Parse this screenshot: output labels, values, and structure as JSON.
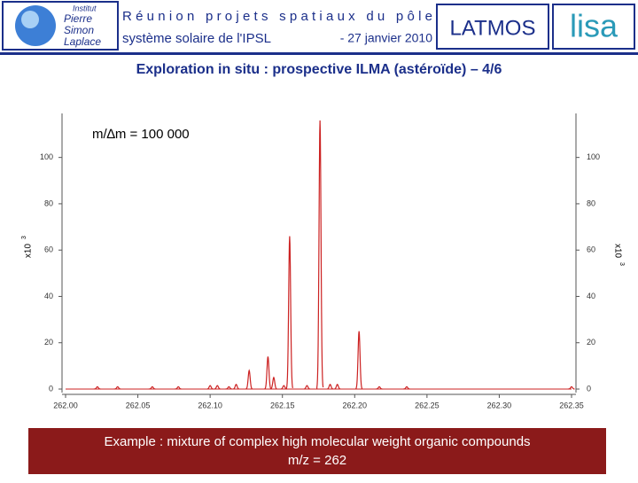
{
  "header": {
    "title_line1": "Réunion projets spatiaux du pôle",
    "title_line2": "système solaire de l'IPSL",
    "date": "- 27 janvier 2010",
    "logo_ipsl": [
      "Institut",
      "Pierre",
      "Simon",
      "Laplace"
    ],
    "logo_latmos": "LATMOS",
    "logo_lisa": "lisa"
  },
  "slide_title": "Exploration in situ : prospective ILMA (astéroïde) – 4/6",
  "chart_data": {
    "type": "spectrum",
    "annotation": "m/∆m = 100 000",
    "y_label": "x10",
    "y_label_exponent": "3",
    "color": "#cc2222",
    "x": [
      262.022,
      262.036,
      262.06,
      262.078,
      262.1,
      262.105,
      262.113,
      262.118,
      262.127,
      262.14,
      262.144,
      262.151,
      262.155,
      262.167,
      262.176,
      262.183,
      262.188,
      262.203,
      262.217,
      262.236,
      262.35
    ],
    "values": [
      1,
      1,
      1,
      1,
      1.5,
      1.5,
      1,
      2,
      8,
      14,
      5,
      1.5,
      66,
      1.5,
      116,
      2,
      2,
      25,
      1,
      1,
      1
    ],
    "xlim": [
      262.0,
      262.35
    ],
    "ylim": [
      0,
      119
    ],
    "xticks": [
      {
        "value": 262.0,
        "label": "262.00"
      },
      {
        "value": 262.05,
        "label": "262.05"
      },
      {
        "value": 262.1,
        "label": "262.10"
      },
      {
        "value": 262.15,
        "label": "262.15"
      },
      {
        "value": 262.2,
        "label": "262.20"
      },
      {
        "value": 262.25,
        "label": "262.25"
      },
      {
        "value": 262.3,
        "label": "262.30"
      },
      {
        "value": 262.35,
        "label": "262.35"
      }
    ],
    "yticks": [
      0,
      20,
      40,
      60,
      80,
      100
    ]
  },
  "caption": {
    "line1": "Example : mixture of complex high molecular weight organic compounds",
    "line2": "m/z = 262"
  }
}
